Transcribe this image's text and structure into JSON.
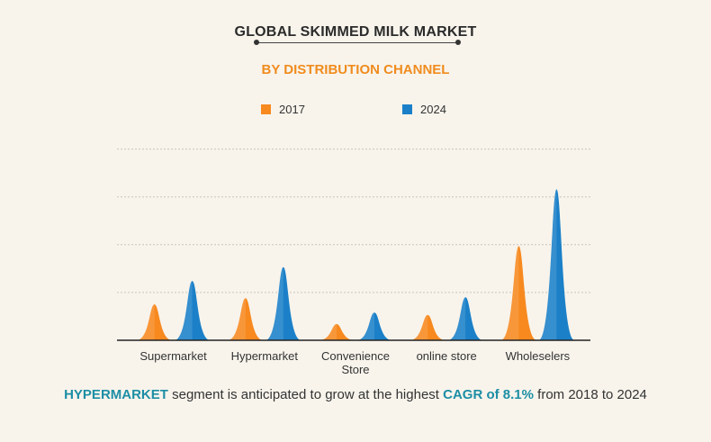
{
  "title": "GLOBAL SKIMMED MILK MARKET",
  "subtitle": "BY DISTRIBUTION CHANNEL",
  "colors": {
    "s2017": "#f7891f",
    "s2024": "#1b80c8",
    "accent": "#f08c1e",
    "highlight": "#1d8ea5"
  },
  "footer": {
    "segment": "HYPERMARKET",
    "text1": " segment is anticipated to grow at the highest ",
    "cagr": "CAGR of 8.1%",
    "text2": " from 2018 to 2024"
  },
  "chart_data": {
    "type": "area",
    "title": "GLOBAL SKIMMED MILK MARKET",
    "subtitle": "BY DISTRIBUTION CHANNEL",
    "categories": [
      [
        "Supermarket"
      ],
      [
        "Hypermarket"
      ],
      [
        "Convenience",
        "Store"
      ],
      [
        "online store"
      ],
      [
        "Wholeselers"
      ]
    ],
    "series": [
      {
        "name": "2017",
        "values": [
          0.75,
          0.88,
          0.34,
          0.53,
          1.97
        ]
      },
      {
        "name": "2024",
        "values": [
          1.24,
          1.53,
          0.58,
          0.9,
          3.16
        ]
      }
    ],
    "ylim": [
      0,
      4.2
    ],
    "gridlines": [
      1,
      2,
      3,
      4
    ],
    "legend_position": "top",
    "yaxis_labels_shown": false
  }
}
